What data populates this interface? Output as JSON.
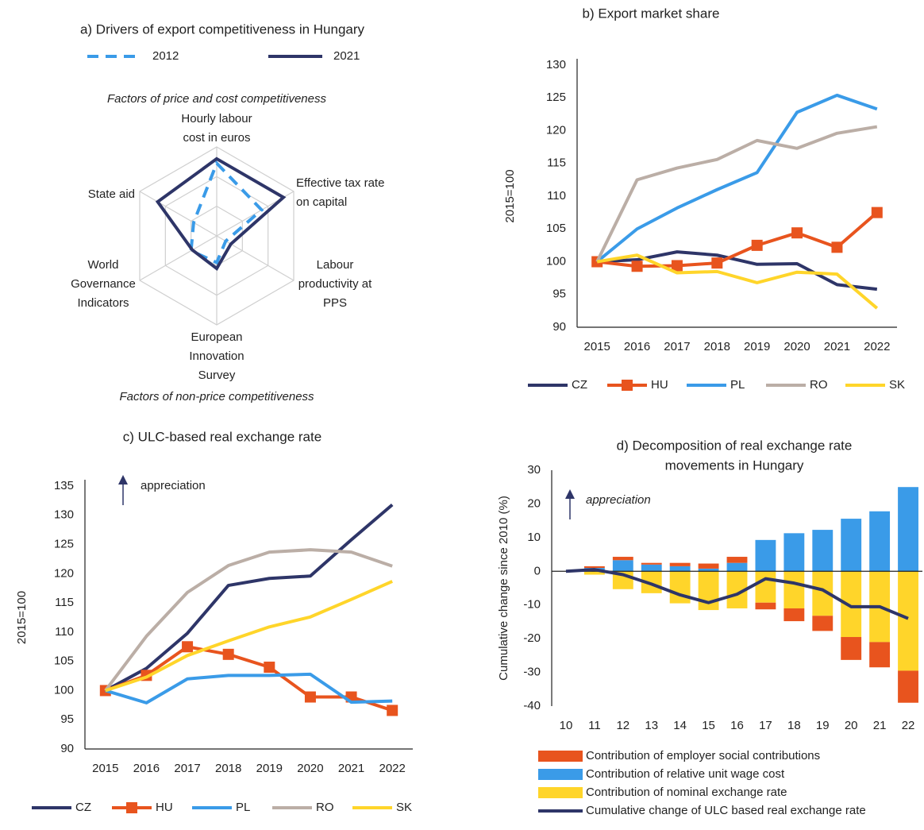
{
  "chart_data": [
    {
      "type": "radar",
      "title": "a) Drivers of export competitiveness in Hungary",
      "categories": [
        "Hourly labour\ncost in euros",
        "Effective tax rate\non capital",
        "Labour\nproductivity at\nPPS",
        "European\nInnovation\nSurvey",
        "World\nGovernance\nIndicators",
        "State aid"
      ],
      "annotations": [
        "Factors of price and cost competitiveness",
        "Factors of non-price competitiveness"
      ],
      "rlim": [
        0,
        3
      ],
      "series": [
        {
          "name": "2012",
          "color": "#3a9be8",
          "line_style": "dashed",
          "values": [
            2.45,
            1.75,
            0.35,
            0.9,
            1.0,
            0.9
          ]
        },
        {
          "name": "2021",
          "color": "#2e3568",
          "line_style": "solid",
          "values": [
            2.6,
            2.6,
            0.55,
            1.1,
            0.95,
            2.3
          ]
        }
      ]
    },
    {
      "type": "line",
      "title": "b) Export market share",
      "y_label": "2015=100",
      "categories": [
        "2015",
        "2016",
        "2017",
        "2018",
        "2019",
        "2020",
        "2021",
        "2022"
      ],
      "ylim": [
        90,
        130
      ],
      "yticks": [
        90,
        95,
        100,
        105,
        110,
        115,
        120,
        125,
        130
      ],
      "series": [
        {
          "name": "CZ",
          "color": "#2e3568",
          "values": [
            100,
            100.3,
            101.5,
            101,
            99.6,
            99.7,
            96.5,
            95.8
          ]
        },
        {
          "name": "HU",
          "color": "#e8541e",
          "marker": "square",
          "values": [
            100,
            99.3,
            99.4,
            99.8,
            102.5,
            104.4,
            102.2,
            107.5
          ]
        },
        {
          "name": "PL",
          "color": "#3a9be8",
          "values": [
            100,
            105,
            108.2,
            111,
            113.6,
            122.8,
            125.4,
            123.3
          ]
        },
        {
          "name": "RO",
          "color": "#bbaea6",
          "values": [
            100,
            112.5,
            114.3,
            115.6,
            118.5,
            117.3,
            119.6,
            120.6
          ]
        },
        {
          "name": "SK",
          "color": "#ffd52a",
          "values": [
            100,
            101,
            98.3,
            98.5,
            96.8,
            98.4,
            98.1,
            92.9
          ]
        }
      ]
    },
    {
      "type": "line",
      "title": "c) ULC-based real exchange rate",
      "y_label": "2015=100",
      "annotation": "appreciation",
      "categories": [
        "2015",
        "2016",
        "2017",
        "2018",
        "2019",
        "2020",
        "2021",
        "2022"
      ],
      "ylim": [
        90,
        135
      ],
      "yticks": [
        90,
        95,
        100,
        105,
        110,
        115,
        120,
        125,
        130,
        135
      ],
      "series": [
        {
          "name": "CZ",
          "color": "#2e3568",
          "values": [
            100,
            103.8,
            109.8,
            118,
            119.2,
            119.6,
            125.8,
            131.8
          ]
        },
        {
          "name": "HU",
          "color": "#e8541e",
          "marker": "square",
          "values": [
            100,
            102.6,
            107.5,
            106.2,
            104,
            98.9,
            98.9,
            96.6
          ]
        },
        {
          "name": "PL",
          "color": "#3a9be8",
          "values": [
            100,
            97.9,
            102,
            102.6,
            102.6,
            102.8,
            98,
            98.2
          ]
        },
        {
          "name": "RO",
          "color": "#bbaea6",
          "values": [
            100,
            109.3,
            116.8,
            121.4,
            123.7,
            124.1,
            123.7,
            121.3
          ]
        },
        {
          "name": "SK",
          "color": "#ffd52a",
          "values": [
            100,
            102.3,
            106,
            108.5,
            110.9,
            112.6,
            115.6,
            118.7
          ]
        }
      ]
    },
    {
      "type": "bar",
      "stacked": true,
      "title": "d) Decomposition of real exchange rate\nmovements in Hungary",
      "y_label": "Cumulative change since 2010 (%)",
      "annotation": "appreciation",
      "categories": [
        "10",
        "11",
        "12",
        "13",
        "14",
        "15",
        "16",
        "17",
        "18",
        "19",
        "20",
        "21",
        "22"
      ],
      "ylim": [
        -40,
        30
      ],
      "yticks": [
        -40,
        -30,
        -20,
        -10,
        0,
        10,
        20,
        30
      ],
      "series": [
        {
          "name": "Contribution of employer social contributions",
          "color": "#e8541e",
          "values": [
            0,
            0.5,
            1,
            0.5,
            1,
            1.5,
            1.8,
            -2,
            -3.8,
            -4.5,
            -6.8,
            -7.5,
            -9.5
          ]
        },
        {
          "name": "Contribution of relative unit wage cost",
          "color": "#3a9be8",
          "values": [
            0,
            1,
            3.3,
            2,
            1.5,
            0.8,
            2.5,
            9.3,
            11.3,
            12.3,
            15.6,
            17.8,
            25
          ]
        },
        {
          "name": "Contribution of nominal exchange rate",
          "color": "#ffd52a",
          "values": [
            0,
            -1,
            -5.3,
            -6.5,
            -9.5,
            -11.5,
            -11,
            -9.3,
            -11,
            -13.2,
            -19.5,
            -21,
            -29.5
          ]
        },
        {
          "name": "Cumulative change of ULC based real exchange rate",
          "color": "#2e3568",
          "type": "line",
          "values": [
            0,
            0.5,
            -1,
            -3.8,
            -7,
            -9.3,
            -6.8,
            -2.2,
            -3.5,
            -5.5,
            -10.5,
            -10.5,
            -14
          ]
        }
      ]
    }
  ]
}
